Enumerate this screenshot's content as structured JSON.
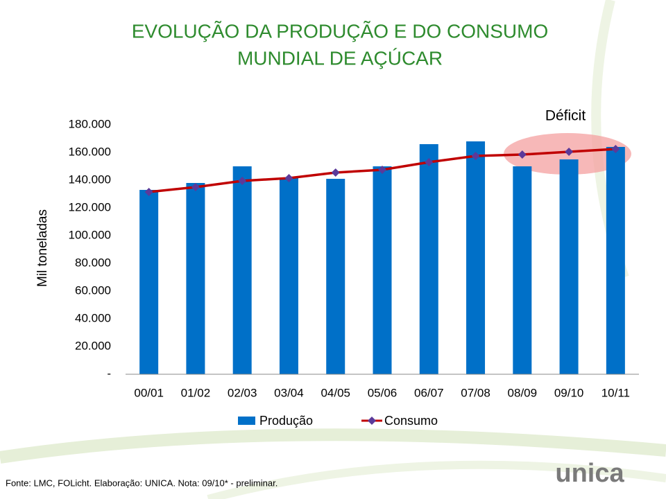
{
  "chart_data": {
    "type": "combo",
    "title": [
      "EVOLUÇÃO DA PRODUÇÃO E DO CONSUMO",
      "MUNDIAL DE AÇÚCAR"
    ],
    "y_label": "Mil toneladas",
    "annotation": "Déficit",
    "categories": [
      "00/01",
      "01/02",
      "02/03",
      "03/04",
      "04/05",
      "05/06",
      "06/07",
      "07/08",
      "08/09",
      "09/10",
      "10/11"
    ],
    "series": [
      {
        "name": "Produção",
        "type": "bar",
        "color": "#0070c8",
        "values": [
          133000,
          138000,
          150000,
          142000,
          141000,
          150000,
          166000,
          168000,
          150000,
          155000,
          164000
        ]
      },
      {
        "name": "Consumo",
        "type": "line",
        "color": "#c00000",
        "marker_color": "#5b3a9a",
        "values": [
          131500,
          135000,
          139500,
          141500,
          145500,
          147500,
          153000,
          157500,
          158500,
          160500,
          162500
        ]
      }
    ],
    "ylim": [
      0,
      180000
    ],
    "yticks": [
      {
        "value": 0,
        "label": "-"
      },
      {
        "value": 20000,
        "label": "20.000"
      },
      {
        "value": 40000,
        "label": "40.000"
      },
      {
        "value": 60000,
        "label": "60.000"
      },
      {
        "value": 80000,
        "label": "80.000"
      },
      {
        "value": 100000,
        "label": "100.000"
      },
      {
        "value": 120000,
        "label": "120.000"
      },
      {
        "value": 140000,
        "label": "140.000"
      },
      {
        "value": 160000,
        "label": "160.000"
      },
      {
        "value": 180000,
        "label": "180.000"
      }
    ],
    "grid": false,
    "legend": "bottom",
    "source": "Fonte: LMC, FOLicht. Elaboração: UNICA. Nota: 09/10* - preliminar."
  },
  "logo": "unica"
}
